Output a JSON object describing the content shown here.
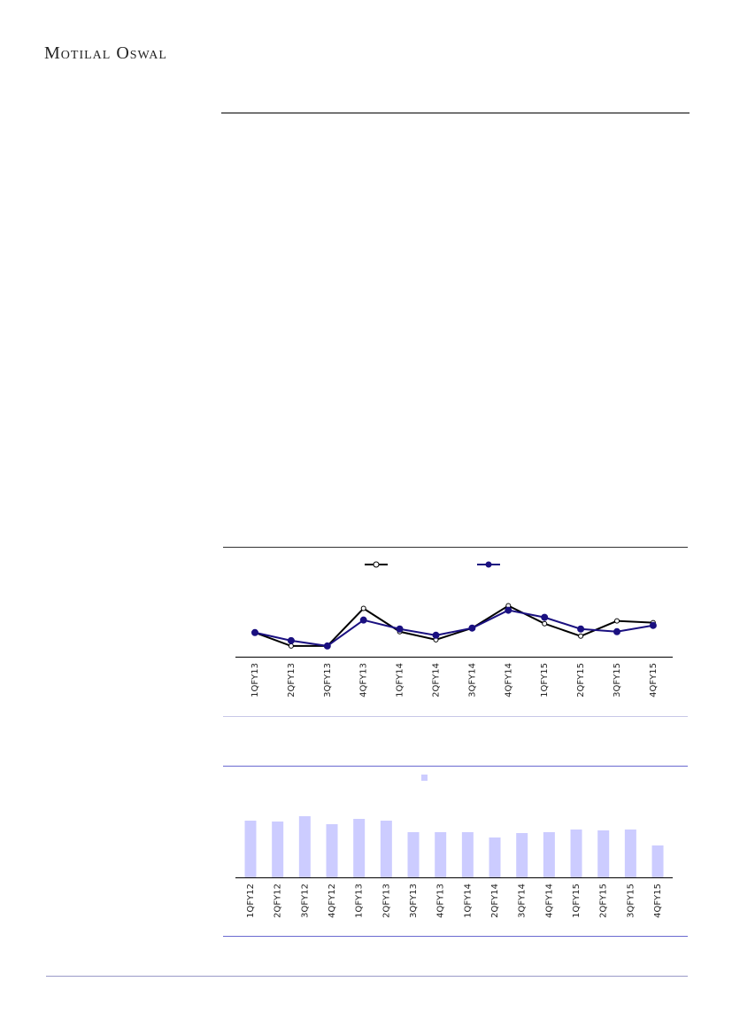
{
  "header": {
    "logo": "Motilal Oswal"
  },
  "chart_data": [
    {
      "type": "line",
      "categories": [
        "1QFY13",
        "2QFY13",
        "3QFY13",
        "4QFY13",
        "1QFY14",
        "2QFY14",
        "3QFY14",
        "4QFY14",
        "1QFY15",
        "2QFY15",
        "3QFY15",
        "4QFY15"
      ],
      "series": [
        {
          "color": "#000000",
          "values": [
            27,
            12,
            12,
            54,
            28,
            19,
            32,
            57,
            37,
            23,
            40,
            38
          ]
        },
        {
          "color": "#1a1080",
          "values": [
            27,
            18,
            12,
            41,
            31,
            24,
            32,
            52,
            44,
            31,
            28,
            35
          ]
        }
      ],
      "ylim": [
        0,
        120
      ]
    },
    {
      "type": "bar",
      "categories": [
        "1QFY12",
        "2QFY12",
        "3QFY12",
        "4QFY12",
        "1QFY13",
        "2QFY13",
        "3QFY13",
        "4QFY13",
        "1QFY14",
        "2QFY14",
        "3QFY14",
        "4QFY14",
        "1QFY15",
        "2QFY15",
        "3QFY15",
        "4QFY15"
      ],
      "values": [
        64,
        63,
        69,
        60,
        66,
        64,
        51,
        51,
        51,
        45,
        50,
        51,
        54,
        53,
        54,
        36
      ],
      "color": "#ccccff",
      "ylim": [
        0,
        120
      ]
    }
  ]
}
